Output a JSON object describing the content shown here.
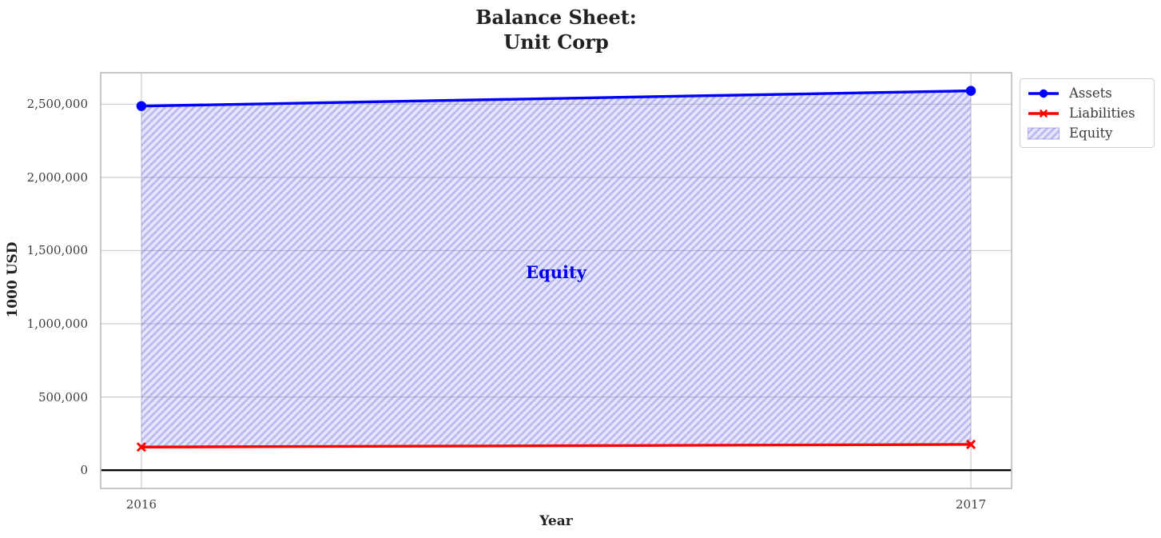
{
  "figure": {
    "title_line1": "Balance Sheet:",
    "title_line2": "Unit Corp"
  },
  "chart_data": {
    "type": "line",
    "title": "Balance Sheet: Unit Corp",
    "xlabel": "Year",
    "ylabel": "1000 USD",
    "x": [
      2016,
      2017
    ],
    "xtick_labels": [
      "2016",
      "2017"
    ],
    "series": [
      {
        "name": "Assets",
        "values": [
          2487000,
          2591000
        ],
        "color": "#0000ff",
        "marker": "circle",
        "linewidth": 3.4
      },
      {
        "name": "Liabilities",
        "values": [
          158000,
          176000
        ],
        "color": "#ff0000",
        "marker": "x",
        "linewidth": 3.4
      }
    ],
    "area": {
      "name": "Equity",
      "between": [
        "Liabilities",
        "Assets"
      ],
      "label": "Equity",
      "label_color": "#0000ee",
      "fill": "rgba(105,105,230,0.18)",
      "hatch": "//",
      "hatch_color": "rgba(80,80,215,0.30)",
      "edge_color": "rgba(100,100,220,0.45)"
    },
    "yticks": [
      0,
      500000,
      1000000,
      1500000,
      2000000,
      2500000
    ],
    "ytick_labels": [
      "0",
      "500,000",
      "1,000,000",
      "1,500,000",
      "2,000,000",
      "2,500,000"
    ],
    "xlim": [
      2015.95,
      2017.05
    ],
    "ylim": [
      -130000,
      2720000
    ],
    "grid": true,
    "zero_line": true,
    "legend": {
      "entries": [
        "Assets",
        "Liabilities",
        "Equity"
      ],
      "position": "outside-upper-right"
    }
  },
  "colors": {
    "background": "#ffffff",
    "grid": "#cdcdcd",
    "spine": "#c2c2c2",
    "zero_line": "#000000",
    "title_text": "#212121",
    "tick_text": "#3d3d3d",
    "legend_text": "#3a3a3a",
    "legend_border": "#cfcfcf"
  }
}
